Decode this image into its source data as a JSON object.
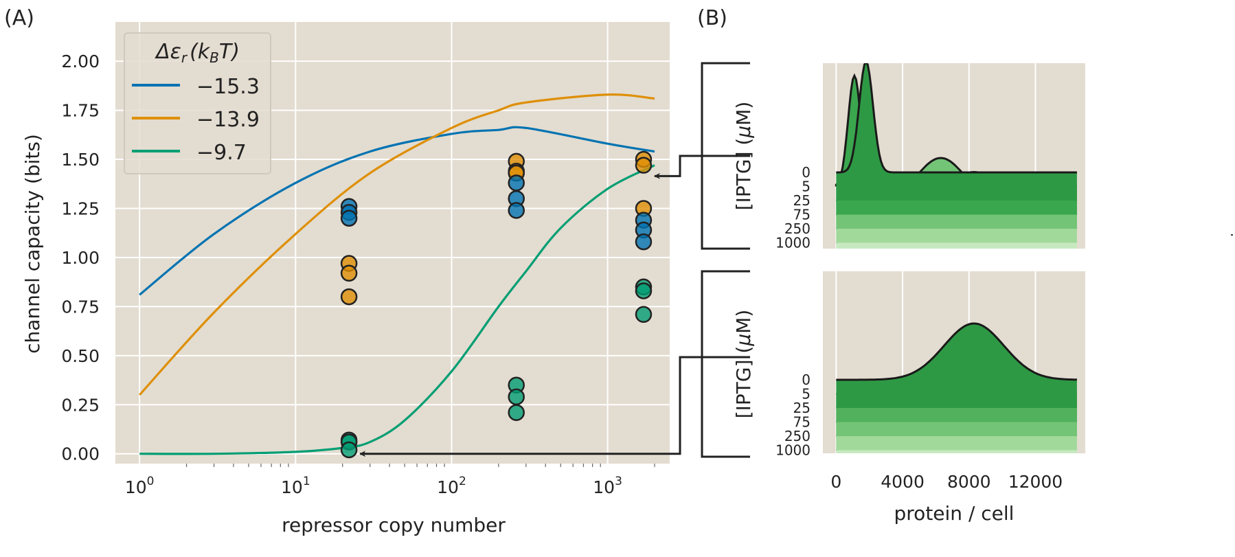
{
  "panel_a_label": "(A)",
  "panel_b_label": "(B)",
  "chart_data": [
    {
      "type": "line",
      "panel": "A",
      "xlabel": "repressor copy number",
      "ylabel": "channel capacity (bits)",
      "xscale": "log",
      "xlim": [
        0.7,
        2500
      ],
      "ylim": [
        -0.05,
        2.2
      ],
      "x_ticks": [
        1,
        10,
        100,
        1000
      ],
      "x_tick_labels": [
        {
          "base": "10",
          "exp": "0"
        },
        {
          "base": "10",
          "exp": "1"
        },
        {
          "base": "10",
          "exp": "2"
        },
        {
          "base": "10",
          "exp": "3"
        }
      ],
      "y_ticks": [
        "0.00",
        "0.25",
        "0.50",
        "0.75",
        "1.00",
        "1.25",
        "1.50",
        "1.75",
        "2.00"
      ],
      "grid": true,
      "legend": {
        "title_math": "Δε",
        "title_sub": "r",
        "title_paren_open": "(k",
        "title_paren_sub": "B",
        "title_paren_close": "T)",
        "placement": "top-left",
        "entries": [
          "−15.3",
          "−13.9",
          "−9.7"
        ]
      },
      "series": [
        {
          "color": "#0173b2",
          "x": [
            1,
            3,
            10,
            30,
            100,
            200,
            300,
            1000,
            2000
          ],
          "y": [
            0.81,
            1.12,
            1.38,
            1.54,
            1.63,
            1.65,
            1.66,
            1.58,
            1.54
          ]
        },
        {
          "color": "#de8f05",
          "x": [
            1,
            3,
            10,
            30,
            100,
            200,
            300,
            1000,
            2000
          ],
          "y": [
            0.3,
            0.72,
            1.12,
            1.43,
            1.66,
            1.75,
            1.79,
            1.83,
            1.81
          ]
        },
        {
          "color": "#029e73",
          "x": [
            1,
            3,
            10,
            20,
            30,
            50,
            100,
            200,
            300,
            500,
            1000,
            2000
          ],
          "y": [
            0.0,
            0.0,
            0.01,
            0.03,
            0.06,
            0.17,
            0.42,
            0.75,
            0.93,
            1.15,
            1.35,
            1.47
          ]
        }
      ],
      "measurements": [
        {
          "x": 22,
          "y": 1.26,
          "color": "#0173b2"
        },
        {
          "x": 22,
          "y": 1.23,
          "color": "#0173b2"
        },
        {
          "x": 22,
          "y": 1.2,
          "color": "#0173b2"
        },
        {
          "x": 22,
          "y": 0.97,
          "color": "#de8f05"
        },
        {
          "x": 22,
          "y": 0.92,
          "color": "#de8f05"
        },
        {
          "x": 22,
          "y": 0.8,
          "color": "#de8f05"
        },
        {
          "x": 22,
          "y": 0.07,
          "color": "#029e73"
        },
        {
          "x": 22,
          "y": 0.06,
          "color": "#029e73"
        },
        {
          "x": 22,
          "y": 0.02,
          "color": "#029e73"
        },
        {
          "x": 260,
          "y": 1.49,
          "color": "#de8f05"
        },
        {
          "x": 260,
          "y": 1.44,
          "color": "#de8f05"
        },
        {
          "x": 260,
          "y": 1.43,
          "color": "#de8f05"
        },
        {
          "x": 260,
          "y": 1.38,
          "color": "#0173b2"
        },
        {
          "x": 260,
          "y": 1.3,
          "color": "#0173b2"
        },
        {
          "x": 260,
          "y": 1.24,
          "color": "#0173b2"
        },
        {
          "x": 260,
          "y": 0.35,
          "color": "#029e73"
        },
        {
          "x": 260,
          "y": 0.29,
          "color": "#029e73"
        },
        {
          "x": 260,
          "y": 0.21,
          "color": "#029e73"
        },
        {
          "x": 1700,
          "y": 1.5,
          "color": "#de8f05"
        },
        {
          "x": 1700,
          "y": 1.47,
          "color": "#de8f05"
        },
        {
          "x": 1700,
          "y": 1.25,
          "color": "#de8f05"
        },
        {
          "x": 1700,
          "y": 1.19,
          "color": "#0173b2"
        },
        {
          "x": 1700,
          "y": 1.14,
          "color": "#0173b2"
        },
        {
          "x": 1700,
          "y": 1.08,
          "color": "#0173b2"
        },
        {
          "x": 1700,
          "y": 0.85,
          "color": "#029e73"
        },
        {
          "x": 1700,
          "y": 0.83,
          "color": "#029e73"
        },
        {
          "x": 1700,
          "y": 0.71,
          "color": "#029e73"
        }
      ],
      "arrow_targets": [
        {
          "x": 1700,
          "y": 1.45
        },
        {
          "x": 22,
          "y": 0.0
        }
      ]
    },
    {
      "type": "area",
      "panel": "B-top",
      "ylabel_prefix": "[IPTG] (",
      "ylabel_mu": "μ",
      "ylabel_suffix": "M)",
      "iptg_labels": [
        "0",
        "5",
        "25",
        "75",
        "250",
        "1000"
      ],
      "xlim": [
        -800,
        15000
      ],
      "x_ticks": [
        0,
        4000,
        8000,
        12000
      ],
      "grid": true,
      "distributions": [
        {
          "iptg": "0",
          "mean": 1800,
          "sd": 420,
          "color": "#2e9944"
        },
        {
          "iptg": "5",
          "mean": 1100,
          "sd": 380,
          "color": "#3aa64e"
        },
        {
          "iptg": "25",
          "mean": 6300,
          "sd": 1400,
          "color": "#73c476"
        },
        {
          "iptg": "75",
          "mean": 8300,
          "sd": 1800,
          "color": "#a1d99b"
        },
        {
          "iptg": "250",
          "mean": 8900,
          "sd": 1850,
          "color": "#c7e9c0"
        },
        {
          "iptg": "1000",
          "mean": 9000,
          "sd": 1900,
          "color": "#e5f5e0"
        }
      ]
    },
    {
      "type": "area",
      "panel": "B-bottom",
      "xlabel": "protein / cell",
      "ylabel_prefix": "[IPTG] (",
      "ylabel_mu": "μ",
      "ylabel_suffix": "M)",
      "iptg_labels": [
        "0",
        "5",
        "25",
        "75",
        "250",
        "1000"
      ],
      "xlim": [
        -800,
        15000
      ],
      "x_ticks": [
        0,
        4000,
        8000,
        12000
      ],
      "grid": true,
      "distributions": [
        {
          "iptg": "0",
          "mean": 8300,
          "sd": 1800,
          "color": "#2e9944"
        },
        {
          "iptg": "5",
          "mean": 8400,
          "sd": 1850,
          "color": "#51b15c"
        },
        {
          "iptg": "25",
          "mean": 8500,
          "sd": 1850,
          "color": "#73c476"
        },
        {
          "iptg": "75",
          "mean": 8600,
          "sd": 1900,
          "color": "#a1d99b"
        },
        {
          "iptg": "250",
          "mean": 8700,
          "sd": 1900,
          "color": "#c7e9c0"
        },
        {
          "iptg": "1000",
          "mean": 8800,
          "sd": 1950,
          "color": "#e5f5e0"
        }
      ]
    }
  ]
}
